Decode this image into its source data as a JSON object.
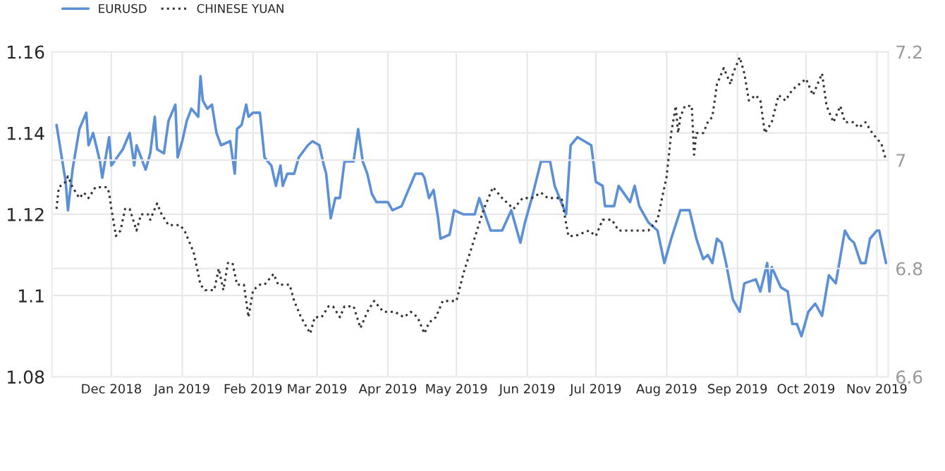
{
  "chart_data": {
    "type": "line",
    "legend": "top left",
    "grid": true,
    "xlim": [
      "2018-11-05",
      "2019-11-06"
    ],
    "xticks": [
      {
        "value": "2018-12-01",
        "label": "Dec 2018"
      },
      {
        "value": "2019-01-01",
        "label": "Jan 2019"
      },
      {
        "value": "2019-02-01",
        "label": "Feb 2019"
      },
      {
        "value": "2019-03-01",
        "label": "Mar 2019"
      },
      {
        "value": "2019-04-01",
        "label": "Apr 2019"
      },
      {
        "value": "2019-05-01",
        "label": "May 2019"
      },
      {
        "value": "2019-06-01",
        "label": "Jun 2019"
      },
      {
        "value": "2019-07-01",
        "label": "Jul 2019"
      },
      {
        "value": "2019-08-01",
        "label": "Aug 2019"
      },
      {
        "value": "2019-09-01",
        "label": "Sep 2019"
      },
      {
        "value": "2019-10-01",
        "label": "Oct 2019"
      },
      {
        "value": "2019-11-01",
        "label": "Nov 2019"
      }
    ],
    "ylim": [
      1.08,
      1.16
    ],
    "yticks": [
      {
        "value": 1.08,
        "label": "1.08"
      },
      {
        "value": 1.1,
        "label": "1.1"
      },
      {
        "value": 1.12,
        "label": "1.12"
      },
      {
        "value": 1.14,
        "label": "1.14"
      },
      {
        "value": 1.16,
        "label": "1.16"
      }
    ],
    "y2lim": [
      6.6,
      7.2
    ],
    "y2ticks": [
      {
        "value": 6.6,
        "label": "6.6"
      },
      {
        "value": 6.8,
        "label": "6.8"
      },
      {
        "value": 7.0,
        "label": "7"
      },
      {
        "value": 7.2,
        "label": "7.2"
      }
    ],
    "series": [
      {
        "name": "EURUSD",
        "color": "#5b8fd6",
        "line_style": "solid",
        "x": [
          "2018-11-07",
          "2018-11-11",
          "2018-11-12",
          "2018-11-14",
          "2018-11-17",
          "2018-11-20",
          "2018-11-21",
          "2018-11-23",
          "2018-11-26",
          "2018-11-27",
          "2018-11-30",
          "2018-12-01",
          "2018-12-06",
          "2018-12-09",
          "2018-12-11",
          "2018-12-12",
          "2018-12-16",
          "2018-12-18",
          "2018-12-20",
          "2018-12-21",
          "2018-12-24",
          "2018-12-26",
          "2018-12-29",
          "2018-12-30",
          "2019-01-01",
          "2019-01-03",
          "2019-01-05",
          "2019-01-08",
          "2019-01-09",
          "2019-01-10",
          "2019-01-12",
          "2019-01-14",
          "2019-01-16",
          "2019-01-18",
          "2019-01-22",
          "2019-01-24",
          "2019-01-25",
          "2019-01-27",
          "2019-01-29",
          "2019-01-30",
          "2019-02-01",
          "2019-02-04",
          "2019-02-06",
          "2019-02-09",
          "2019-02-11",
          "2019-02-13",
          "2019-02-14",
          "2019-02-16",
          "2019-02-19",
          "2019-02-21",
          "2019-02-25",
          "2019-02-27",
          "2019-03-02",
          "2019-03-04",
          "2019-03-05",
          "2019-03-07",
          "2019-03-09",
          "2019-03-11",
          "2019-03-13",
          "2019-03-17",
          "2019-03-19",
          "2019-03-21",
          "2019-03-23",
          "2019-03-25",
          "2019-03-27",
          "2019-04-01",
          "2019-04-03",
          "2019-04-07",
          "2019-04-10",
          "2019-04-13",
          "2019-04-16",
          "2019-04-17",
          "2019-04-19",
          "2019-04-21",
          "2019-04-23",
          "2019-04-24",
          "2019-04-28",
          "2019-04-30",
          "2019-05-04",
          "2019-05-09",
          "2019-05-11",
          "2019-05-16",
          "2019-05-21",
          "2019-05-25",
          "2019-05-29",
          "2019-05-31",
          "2019-06-03",
          "2019-06-07",
          "2019-06-11",
          "2019-06-13",
          "2019-06-18",
          "2019-06-20",
          "2019-06-23",
          "2019-06-29",
          "2019-07-01",
          "2019-07-04",
          "2019-07-05",
          "2019-07-09",
          "2019-07-11",
          "2019-07-16",
          "2019-07-18",
          "2019-07-20",
          "2019-07-24",
          "2019-07-28",
          "2019-07-31",
          "2019-08-03",
          "2019-08-07",
          "2019-08-11",
          "2019-08-14",
          "2019-08-17",
          "2019-08-19",
          "2019-08-21",
          "2019-08-23",
          "2019-08-25",
          "2019-08-27",
          "2019-08-30",
          "2019-09-02",
          "2019-09-04",
          "2019-09-09",
          "2019-09-11",
          "2019-09-14",
          "2019-09-15",
          "2019-09-16",
          "2019-09-20",
          "2019-09-23",
          "2019-09-25",
          "2019-09-27",
          "2019-09-29",
          "2019-10-02",
          "2019-10-05",
          "2019-10-08",
          "2019-10-11",
          "2019-10-14",
          "2019-10-18",
          "2019-10-20",
          "2019-10-22",
          "2019-10-25",
          "2019-10-27",
          "2019-10-29",
          "2019-11-01",
          "2019-11-02",
          "2019-11-05"
        ],
        "values": [
          1.142,
          1.128,
          1.121,
          1.131,
          1.141,
          1.145,
          1.137,
          1.14,
          1.133,
          1.129,
          1.139,
          1.132,
          1.136,
          1.14,
          1.132,
          1.137,
          1.131,
          1.135,
          1.144,
          1.136,
          1.135,
          1.143,
          1.147,
          1.134,
          1.138,
          1.143,
          1.146,
          1.144,
          1.154,
          1.148,
          1.146,
          1.147,
          1.14,
          1.137,
          1.138,
          1.13,
          1.141,
          1.142,
          1.147,
          1.144,
          1.145,
          1.145,
          1.134,
          1.132,
          1.127,
          1.132,
          1.127,
          1.13,
          1.13,
          1.134,
          1.137,
          1.138,
          1.137,
          1.132,
          1.13,
          1.119,
          1.124,
          1.124,
          1.133,
          1.133,
          1.141,
          1.133,
          1.13,
          1.125,
          1.123,
          1.123,
          1.121,
          1.122,
          1.126,
          1.13,
          1.13,
          1.129,
          1.124,
          1.126,
          1.119,
          1.114,
          1.115,
          1.121,
          1.12,
          1.12,
          1.124,
          1.116,
          1.116,
          1.121,
          1.113,
          1.118,
          1.124,
          1.133,
          1.133,
          1.127,
          1.12,
          1.137,
          1.139,
          1.137,
          1.128,
          1.127,
          1.122,
          1.122,
          1.127,
          1.123,
          1.127,
          1.122,
          1.118,
          1.116,
          1.108,
          1.114,
          1.121,
          1.121,
          1.114,
          1.109,
          1.11,
          1.108,
          1.114,
          1.113,
          1.108,
          1.099,
          1.096,
          1.103,
          1.104,
          1.101,
          1.108,
          1.101,
          1.107,
          1.102,
          1.101,
          1.093,
          1.093,
          1.09,
          1.096,
          1.098,
          1.095,
          1.105,
          1.103,
          1.116,
          1.114,
          1.113,
          1.108,
          1.108,
          1.114,
          1.116,
          1.116,
          1.108
        ]
      },
      {
        "name": "CHINESE YUAN",
        "color": "#333333",
        "line_style": "dotted",
        "axis": "y2",
        "x": [
          "2018-11-07",
          "2018-11-08",
          "2018-11-11",
          "2018-11-12",
          "2018-11-14",
          "2018-11-17",
          "2018-11-19",
          "2018-11-21",
          "2018-11-24",
          "2018-11-26",
          "2018-11-29",
          "2018-11-30",
          "2018-12-01",
          "2018-12-03",
          "2018-12-05",
          "2018-12-07",
          "2018-12-09",
          "2018-12-12",
          "2018-12-14",
          "2018-12-17",
          "2018-12-18",
          "2018-12-21",
          "2018-12-23",
          "2018-12-26",
          "2018-12-28",
          "2018-12-31",
          "2019-01-02",
          "2019-01-05",
          "2019-01-06",
          "2019-01-09",
          "2019-01-11",
          "2019-01-15",
          "2019-01-17",
          "2019-01-19",
          "2019-01-21",
          "2019-01-23",
          "2019-01-25",
          "2019-01-28",
          "2019-01-30",
          "2019-02-01",
          "2019-02-04",
          "2019-02-06",
          "2019-02-10",
          "2019-02-12",
          "2019-02-17",
          "2019-02-19",
          "2019-02-22",
          "2019-02-26",
          "2019-02-28",
          "2019-03-03",
          "2019-03-06",
          "2019-03-08",
          "2019-03-11",
          "2019-03-13",
          "2019-03-17",
          "2019-03-20",
          "2019-03-23",
          "2019-03-26",
          "2019-03-30",
          "2019-04-04",
          "2019-04-08",
          "2019-04-11",
          "2019-04-14",
          "2019-04-17",
          "2019-04-19",
          "2019-04-22",
          "2019-04-25",
          "2019-04-29",
          "2019-05-01",
          "2019-05-04",
          "2019-05-07",
          "2019-05-10",
          "2019-05-13",
          "2019-05-17",
          "2019-05-21",
          "2019-05-26",
          "2019-05-30",
          "2019-06-03",
          "2019-06-07",
          "2019-06-10",
          "2019-06-16",
          "2019-06-19",
          "2019-06-22",
          "2019-06-28",
          "2019-07-01",
          "2019-07-04",
          "2019-07-08",
          "2019-07-11",
          "2019-07-16",
          "2019-07-20",
          "2019-07-24",
          "2019-07-28",
          "2019-08-01",
          "2019-08-03",
          "2019-08-05",
          "2019-08-06",
          "2019-08-07",
          "2019-08-09",
          "2019-08-12",
          "2019-08-13",
          "2019-08-14",
          "2019-08-17",
          "2019-08-19",
          "2019-08-21",
          "2019-08-23",
          "2019-08-26",
          "2019-08-29",
          "2019-08-30",
          "2019-09-02",
          "2019-09-04",
          "2019-09-06",
          "2019-09-09",
          "2019-09-11",
          "2019-09-13",
          "2019-09-16",
          "2019-09-19",
          "2019-09-22",
          "2019-09-25",
          "2019-09-28",
          "2019-10-01",
          "2019-10-04",
          "2019-10-06",
          "2019-10-08",
          "2019-10-10",
          "2019-10-13",
          "2019-10-16",
          "2019-10-18",
          "2019-10-22",
          "2019-10-24",
          "2019-10-27",
          "2019-10-30",
          "2019-11-03",
          "2019-11-05"
        ],
        "values": [
          6.91,
          6.95,
          6.96,
          6.97,
          6.95,
          6.93,
          6.94,
          6.93,
          6.95,
          6.95,
          6.95,
          6.94,
          6.91,
          6.86,
          6.87,
          6.91,
          6.91,
          6.87,
          6.9,
          6.9,
          6.89,
          6.92,
          6.9,
          6.88,
          6.88,
          6.88,
          6.87,
          6.84,
          6.83,
          6.77,
          6.76,
          6.76,
          6.8,
          6.76,
          6.81,
          6.81,
          6.77,
          6.77,
          6.71,
          6.76,
          6.77,
          6.77,
          6.79,
          6.77,
          6.77,
          6.74,
          6.71,
          6.68,
          6.71,
          6.71,
          6.73,
          6.73,
          6.71,
          6.73,
          6.73,
          6.69,
          6.72,
          6.74,
          6.72,
          6.72,
          6.71,
          6.72,
          6.71,
          6.68,
          6.7,
          6.71,
          6.74,
          6.74,
          6.74,
          6.79,
          6.83,
          6.87,
          6.91,
          6.95,
          6.93,
          6.91,
          6.93,
          6.93,
          6.94,
          6.93,
          6.93,
          6.86,
          6.86,
          6.87,
          6.86,
          6.89,
          6.89,
          6.87,
          6.87,
          6.87,
          6.87,
          6.89,
          6.97,
          7.05,
          7.1,
          7.05,
          7.08,
          7.1,
          7.1,
          7.01,
          7.05,
          7.05,
          7.07,
          7.08,
          7.14,
          7.17,
          7.14,
          7.16,
          7.19,
          7.16,
          7.11,
          7.12,
          7.11,
          7.05,
          7.07,
          7.12,
          7.11,
          7.13,
          7.14,
          7.15,
          7.12,
          7.14,
          7.16,
          7.1,
          7.07,
          7.1,
          7.07,
          7.07,
          7.06,
          7.07,
          7.05,
          7.03,
          7.0
        ]
      }
    ]
  }
}
